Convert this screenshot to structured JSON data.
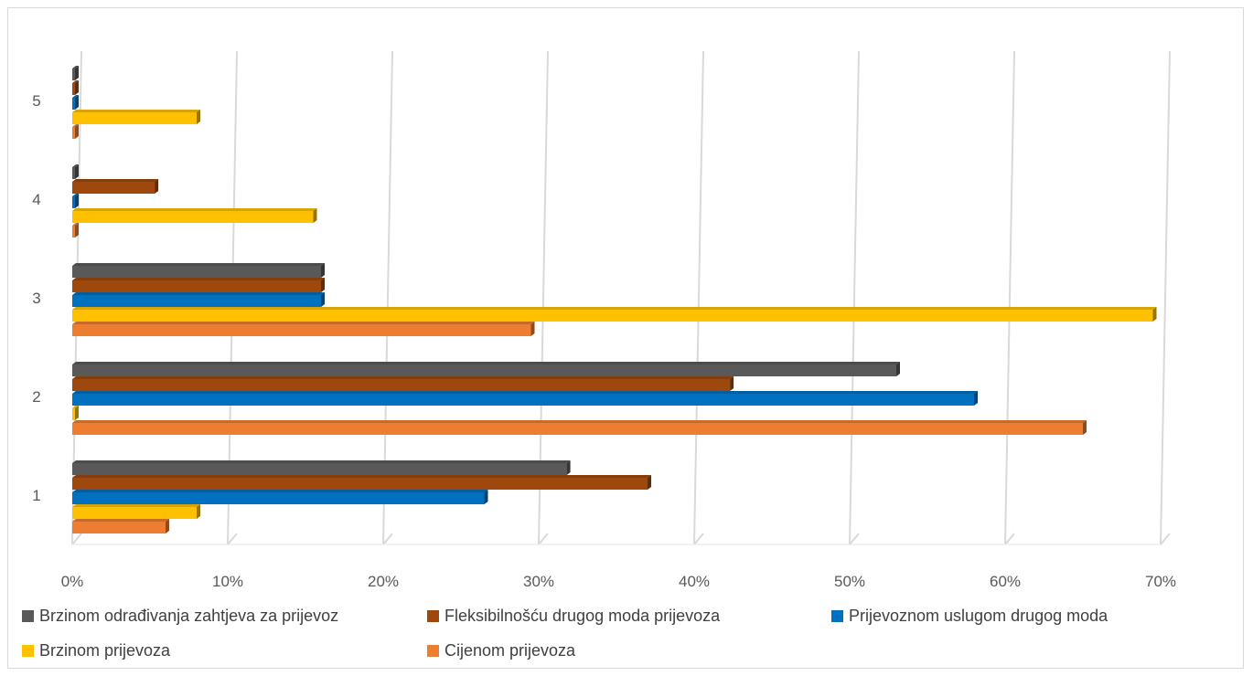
{
  "chart_data": {
    "type": "bar",
    "orientation": "horizontal",
    "style": "3d",
    "categories": [
      "1",
      "2",
      "3",
      "4",
      "5"
    ],
    "xlim": [
      0,
      70
    ],
    "xticks": [
      "0%",
      "10%",
      "20%",
      "30%",
      "40%",
      "50%",
      "60%",
      "70%"
    ],
    "grid": true,
    "legend_position": "bottom",
    "series": [
      {
        "name": "Cijenom prijevoza",
        "color": "#ED7D31",
        "values": [
          6,
          65,
          29.5,
          0,
          0
        ]
      },
      {
        "name": "Brzinom prijevoza",
        "color": "#FFC000",
        "values": [
          8,
          0,
          69.5,
          15.5,
          8
        ]
      },
      {
        "name": "Prijevoznom uslugom drugog  moda",
        "color": "#0070C0",
        "values": [
          26.5,
          58,
          16,
          0,
          0
        ]
      },
      {
        "name": "Fleksibilnošću drugog moda prijevoza",
        "color": "#9E480E",
        "values": [
          37,
          42.3,
          16,
          5.3,
          0
        ]
      },
      {
        "name": "Brzinom odrađivanja zahtjeva za prijevoz",
        "color": "#595959",
        "values": [
          31.8,
          53,
          16,
          0,
          0
        ]
      }
    ]
  },
  "legend": [
    {
      "label": "Brzinom odrađivanja zahtjeva za prijevoz",
      "color": "#595959"
    },
    {
      "label": "Fleksibilnošću drugog moda prijevoza",
      "color": "#9E480E"
    },
    {
      "label": "Prijevoznom uslugom drugog  moda",
      "color": "#0070C0"
    },
    {
      "label": "Brzinom prijevoza",
      "color": "#FFC000"
    },
    {
      "label": "Cijenom prijevoza",
      "color": "#ED7D31"
    }
  ]
}
